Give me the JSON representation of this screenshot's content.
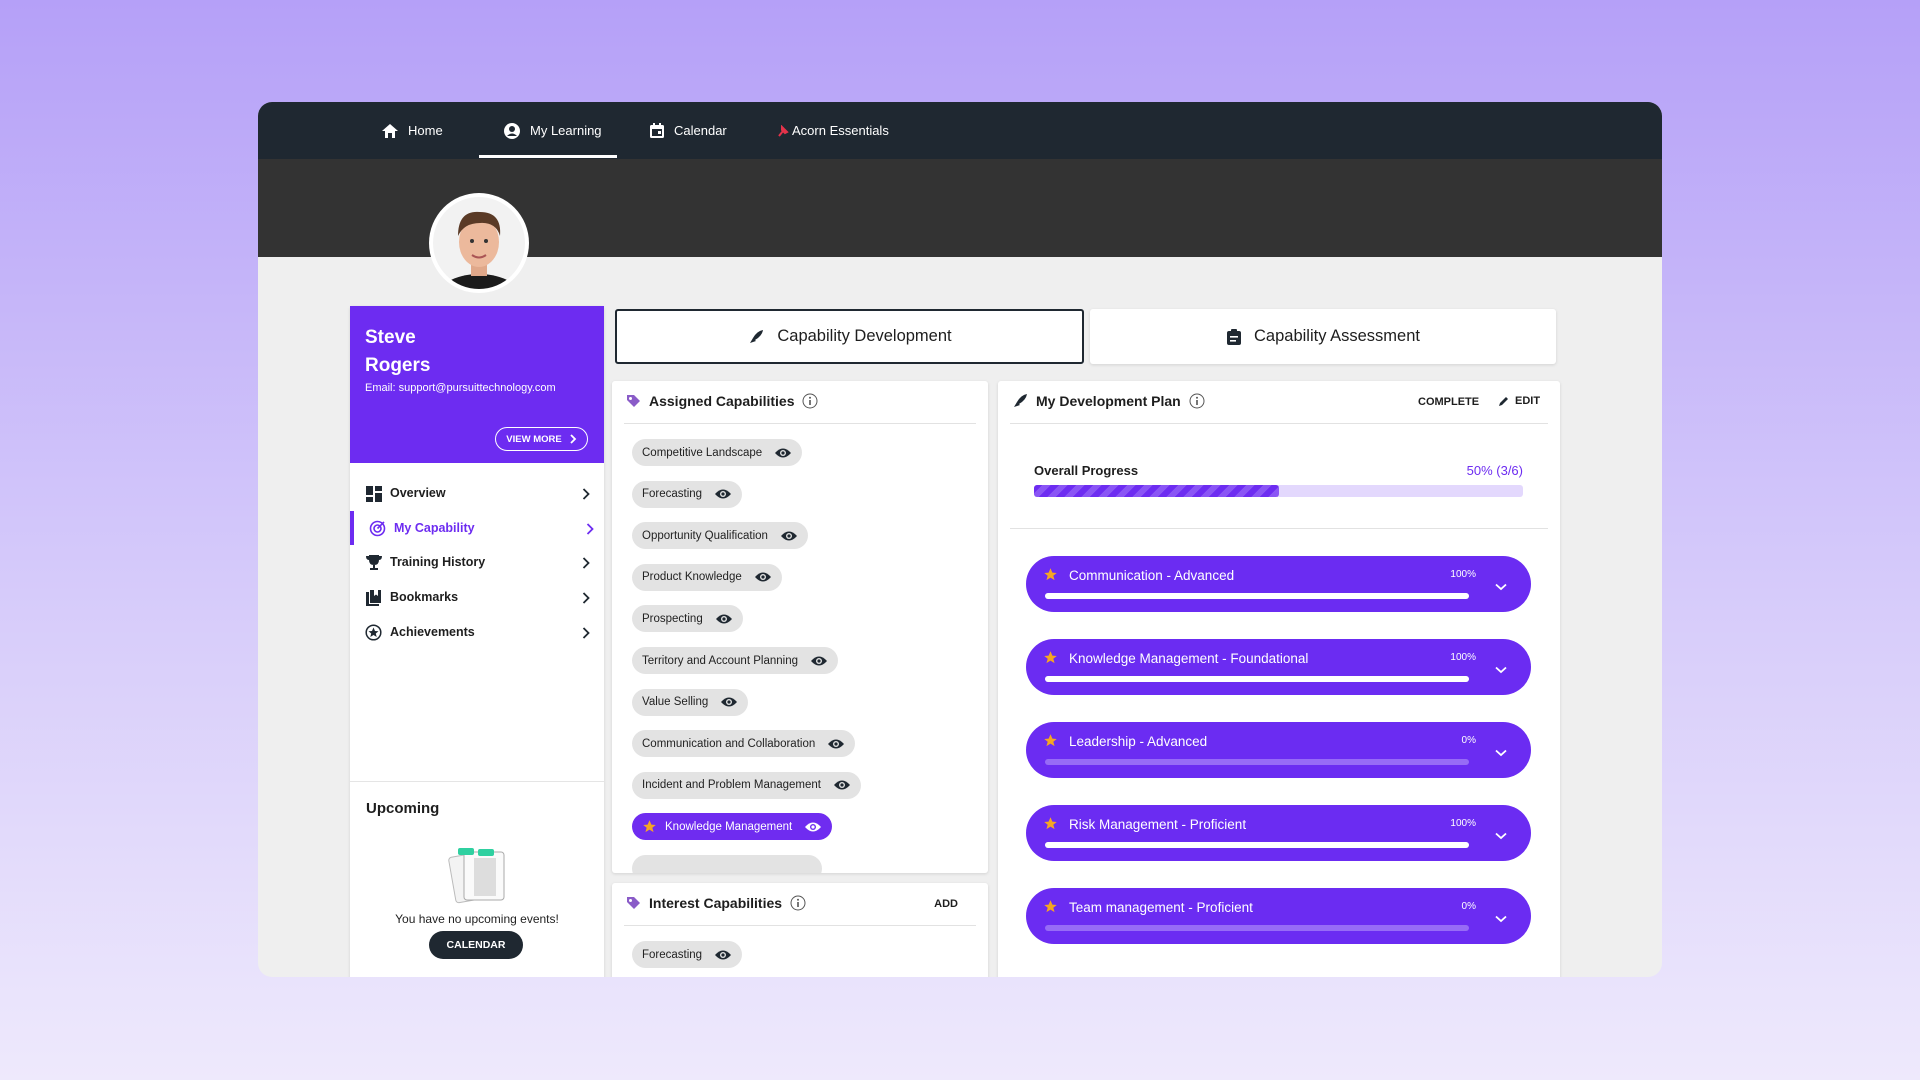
{
  "nav": {
    "items": [
      "Home",
      "My Learning",
      "Calendar",
      "Acorn Essentials"
    ]
  },
  "profile": {
    "first_name": "Steve",
    "last_name": "Rogers",
    "email": "Email: support@pursuittechnology.com",
    "view_more": "VIEW MORE"
  },
  "menu": [
    "Overview",
    "My Capability",
    "Training History",
    "Bookmarks",
    "Achievements"
  ],
  "upcoming": {
    "title": "Upcoming",
    "empty_text": "You have no upcoming events!",
    "button": "CALENDAR"
  },
  "tabs": [
    "Capability Development",
    "Capability Assessment"
  ],
  "assigned": {
    "title": "Assigned Capabilities",
    "items": [
      {
        "name": "Competitive Landscape"
      },
      {
        "name": "Forecasting"
      },
      {
        "name": "Opportunity Qualification"
      },
      {
        "name": "Product Knowledge"
      },
      {
        "name": "Prospecting"
      },
      {
        "name": "Territory and Account Planning"
      },
      {
        "name": "Value Selling"
      },
      {
        "name": "Communication and Collaboration"
      },
      {
        "name": "Incident and Problem Management"
      },
      {
        "name": "Knowledge Management",
        "starred": true
      }
    ]
  },
  "interest": {
    "title": "Interest Capabilities",
    "add": "ADD",
    "items": [
      "Forecasting"
    ]
  },
  "plan": {
    "title": "My Development Plan",
    "complete": "COMPLETE",
    "edit": "EDIT",
    "overall_label": "Overall Progress",
    "overall_value": 50,
    "overall_value_label": "50% (3/6)",
    "items": [
      {
        "name": "Communication - Advanced",
        "progress": 100,
        "progress_label": "100%"
      },
      {
        "name": "Knowledge Management - Foundational",
        "progress": 100,
        "progress_label": "100%"
      },
      {
        "name": "Leadership - Advanced",
        "progress": 0,
        "progress_label": "0%"
      },
      {
        "name": "Risk Management - Proficient",
        "progress": 100,
        "progress_label": "100%"
      },
      {
        "name": "Team management - Proficient",
        "progress": 0,
        "progress_label": "0%"
      }
    ]
  }
}
